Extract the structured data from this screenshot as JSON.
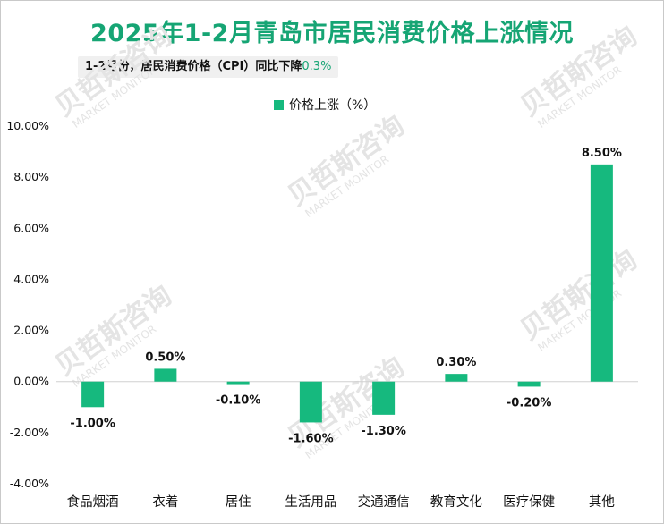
{
  "chart_data": {
    "type": "bar",
    "title": "2025年1-2月青岛市居民消费价格上涨情况",
    "subtitle": "1-2月份，居民消费价格（CPI）同比下降",
    "subtitle_value": "0.3%",
    "legend": "价格上涨（%）",
    "series": [
      {
        "name": "价格上涨（%）",
        "values": [
          -1.0,
          0.5,
          -0.1,
          -1.6,
          -1.3,
          0.3,
          -0.2,
          8.5
        ],
        "labels": [
          "-1.00%",
          "0.50%",
          "-0.10%",
          "-1.60%",
          "-1.30%",
          "0.30%",
          "-0.20%",
          "8.50%"
        ]
      }
    ],
    "categories": [
      "食品烟酒",
      "衣着",
      "居住",
      "生活用品",
      "交通通信",
      "教育文化",
      "医疗保健",
      "其他"
    ],
    "ylim": [
      -4,
      10
    ],
    "y_ticks": [
      {
        "v": 10,
        "label": "10.00%"
      },
      {
        "v": 8,
        "label": "8.00%"
      },
      {
        "v": 6,
        "label": "6.00%"
      },
      {
        "v": 4,
        "label": "4.00%"
      },
      {
        "v": 2,
        "label": "2.00%"
      },
      {
        "v": 0,
        "label": "0.00%"
      },
      {
        "v": -2,
        "label": "-2.00%"
      },
      {
        "v": -4,
        "label": "-4.00%"
      }
    ],
    "grid": false,
    "legend_position": "top-center",
    "bar_color": "#16b97e",
    "accent_color": "#16a574"
  },
  "watermark": {
    "brand": "贝哲斯咨询",
    "brand_en": "MARKET MONITOR"
  }
}
